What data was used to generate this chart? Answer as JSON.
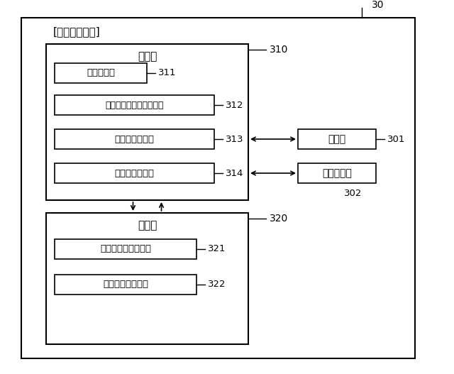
{
  "title": "30",
  "outer_box_label": "[踏切制御装置]",
  "processing_box_label": "処理部",
  "processing_box_ref": "310",
  "memory_box_label": "記憶部",
  "memory_box_ref": "320",
  "inner_boxes_processing": [
    {
      "label": "受信応答部",
      "ref": "311"
    },
    {
      "label": "警報開始時刻記憶制御部",
      "ref": "312"
    },
    {
      "label": "警報開始制御部",
      "ref": "313"
    },
    {
      "label": "警報終了制御部",
      "ref": "314"
    }
  ],
  "inner_boxes_memory": [
    {
      "label": "踏切制御プログラム",
      "ref": "321"
    },
    {
      "label": "警報開始時刻情報",
      "ref": "322"
    }
  ],
  "side_boxes": [
    {
      "label": "時計部",
      "ref": "301"
    },
    {
      "label": "無線通信部",
      "ref": "302"
    }
  ],
  "bg_color": "#ffffff",
  "fontsize_main": 10,
  "fontsize_ref": 9,
  "fontsize_small": 9
}
